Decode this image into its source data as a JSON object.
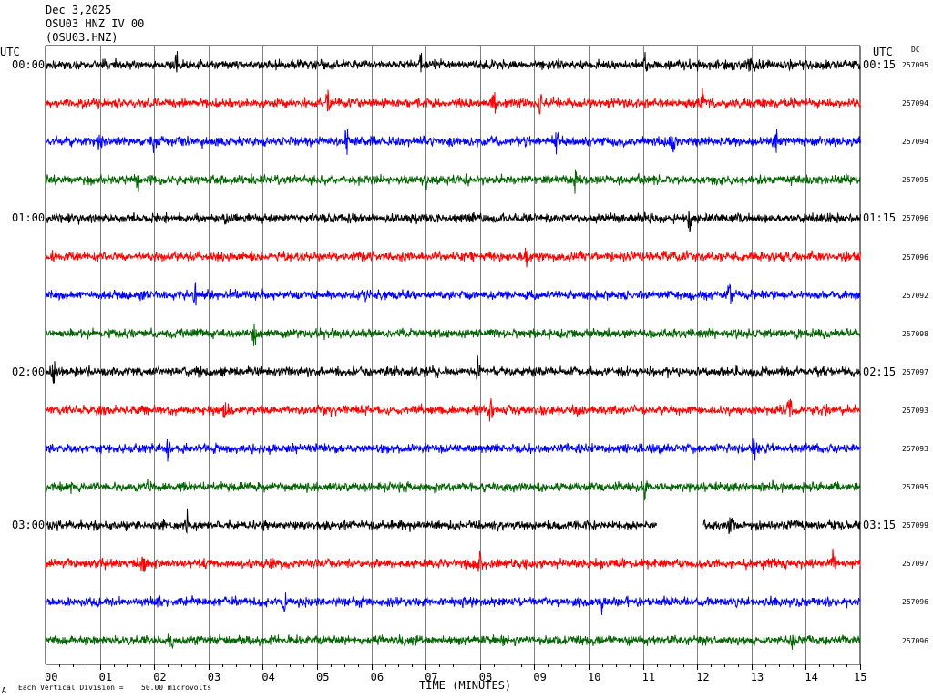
{
  "header": {
    "date": "Dec 3,2025",
    "station": "OSU03 HNZ IV 00",
    "code": "(OSU03.HNZ)"
  },
  "left_utc_label": "UTC",
  "right_utc_label": "UTC",
  "dc_label": "DC",
  "footer": {
    "marker": "A",
    "scale_prefix": "Each Vertical Division =",
    "scale_value": "50.00 microvolts"
  },
  "colors": {
    "trace_cycle": [
      "#000000",
      "#ff0000",
      "#0000ff",
      "#006400"
    ],
    "grid": "#808080",
    "frame": "#000000"
  },
  "chart_data": {
    "type": "line",
    "title": "Dec 3,2025 OSU03 HNZ IV 00 (OSU03.HNZ)",
    "xlabel": "TIME (MINUTES)",
    "ylabel": "UTC",
    "xlim": [
      0,
      15
    ],
    "x_ticks": [
      "00",
      "01",
      "02",
      "03",
      "04",
      "05",
      "06",
      "07",
      "08",
      "09",
      "10",
      "11",
      "12",
      "13",
      "14",
      "15"
    ],
    "grid": true,
    "left_time_labels": [
      "00:00",
      "",
      "",
      "",
      "01:00",
      "",
      "",
      "",
      "02:00",
      "",
      "",
      "",
      "03:00",
      "",
      "",
      ""
    ],
    "right_time_labels": [
      "00:15",
      "",
      "",
      "",
      "01:15",
      "",
      "",
      "",
      "02:15",
      "",
      "",
      "",
      "03:15",
      "",
      "",
      ""
    ],
    "dc_offsets": [
      "257095",
      "257094",
      "257094",
      "257095",
      "257096",
      "257096",
      "257092",
      "257098",
      "257097",
      "257093",
      "257093",
      "257095",
      "257099",
      "257097",
      "257096",
      "257096"
    ],
    "traces": [
      {
        "row": 1,
        "color": "black",
        "events_min": [
          2.4,
          6.9,
          11.05,
          12.95
        ]
      },
      {
        "row": 2,
        "color": "red",
        "events_min": [
          5.2,
          8.25,
          9.1,
          12.1
        ]
      },
      {
        "row": 3,
        "color": "blue",
        "events_min": [
          1.0,
          2.0,
          5.55,
          9.4,
          11.55,
          13.45
        ]
      },
      {
        "row": 4,
        "color": "green",
        "events_min": [
          1.7,
          7.0,
          9.75
        ]
      },
      {
        "row": 5,
        "color": "black",
        "events_min": [
          11.85
        ]
      },
      {
        "row": 6,
        "color": "red",
        "events_min": [
          8.85
        ]
      },
      {
        "row": 7,
        "color": "blue",
        "events_min": [
          2.75,
          12.6
        ]
      },
      {
        "row": 8,
        "color": "green",
        "events_min": [
          3.85
        ]
      },
      {
        "row": 9,
        "color": "black",
        "events_min": [
          0.15,
          7.95
        ]
      },
      {
        "row": 10,
        "color": "red",
        "events_min": [
          3.3,
          8.2,
          13.7
        ]
      },
      {
        "row": 11,
        "color": "blue",
        "events_min": [
          2.25,
          13.05
        ]
      },
      {
        "row": 12,
        "color": "green",
        "events_min": [
          1.9,
          11.05
        ]
      },
      {
        "row": 13,
        "color": "black",
        "events_min": [
          2.6,
          12.6
        ],
        "gap_min": [
          11.25,
          12.1
        ]
      },
      {
        "row": 14,
        "color": "red",
        "events_min": [
          1.8,
          8.0,
          14.5
        ]
      },
      {
        "row": 15,
        "color": "blue",
        "events_min": [
          4.4,
          10.25
        ]
      },
      {
        "row": 16,
        "color": "green",
        "events_min": [
          2.3,
          13.75
        ]
      }
    ]
  }
}
